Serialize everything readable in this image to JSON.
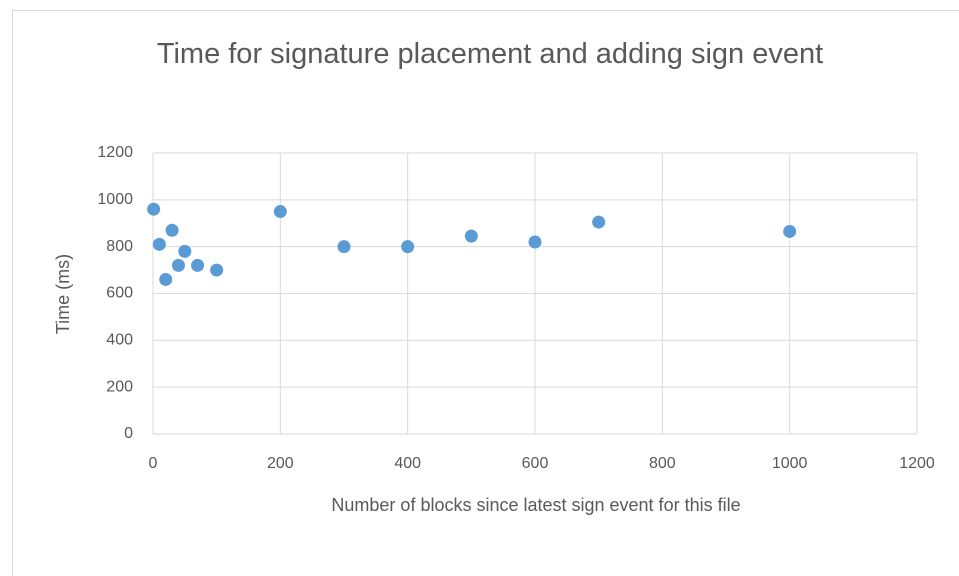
{
  "chart_data": {
    "type": "scatter",
    "title": "Time for signature placement and adding sign event",
    "x_label": "Number  of blocks since latest sign event for this file",
    "y_label": "Time (ms)",
    "x": [
      1,
      10,
      20,
      30,
      40,
      50,
      70,
      100,
      200,
      300,
      400,
      500,
      600,
      700,
      1000
    ],
    "values": [
      960,
      810,
      660,
      870,
      720,
      780,
      720,
      700,
      950,
      800,
      800,
      845,
      820,
      905,
      865
    ],
    "color": "#5b9bd5",
    "xlim": [
      0,
      1200
    ],
    "xticks": [
      0,
      200,
      400,
      600,
      800,
      1000,
      1200
    ],
    "ylim": [
      0,
      1200
    ],
    "yticks": [
      0,
      200,
      400,
      600,
      800,
      1000,
      1200
    ],
    "grid": true
  }
}
